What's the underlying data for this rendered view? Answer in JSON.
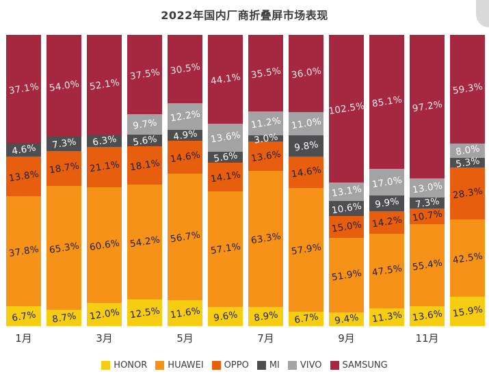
{
  "title": "2022年国内厂商折叠屏市场表现",
  "chart_data": {
    "type": "bar",
    "stacked": true,
    "normalized_100_percent": true,
    "grid": false,
    "legend_position": "bottom",
    "value_suffix": "%",
    "x_tick_labels": [
      "1月",
      "3月",
      "5月",
      "7月",
      "9月",
      "11月"
    ],
    "num_bars": 12,
    "series": [
      {
        "name": "HONOR",
        "color": "#F6CD13",
        "label_color": "#1f1f1f",
        "values": [
          6.7,
          8.7,
          12.0,
          12.5,
          11.6,
          9.6,
          8.9,
          6.7,
          9.4,
          11.3,
          13.6,
          15.9
        ]
      },
      {
        "name": "HUAWEI",
        "color": "#F59217",
        "label_color": "#1f1f1f",
        "values": [
          37.8,
          65.3,
          60.6,
          54.2,
          56.7,
          57.1,
          63.3,
          57.9,
          51.9,
          47.5,
          55.4,
          42.5
        ]
      },
      {
        "name": "OPPO",
        "color": "#E85E0F",
        "label_color": "#1f1f1f",
        "values": [
          13.8,
          18.7,
          21.1,
          18.1,
          14.6,
          14.1,
          13.6,
          14.6,
          15.0,
          14.2,
          10.7,
          28.3
        ]
      },
      {
        "name": "MI",
        "color": "#4E4E50",
        "label_color": "#ffffff",
        "values": [
          4.6,
          7.3,
          6.3,
          5.6,
          4.9,
          5.6,
          3.0,
          9.8,
          10.6,
          9.9,
          7.3,
          5.3
        ]
      },
      {
        "name": "VIVO",
        "color": "#A4A3A4",
        "label_color": "#ffffff",
        "values": [
          null,
          null,
          null,
          9.7,
          12.2,
          13.6,
          11.2,
          11.0,
          13.1,
          17.0,
          13.0,
          8.0
        ]
      },
      {
        "name": "SAMSUNG",
        "color": "#A52840",
        "label_color": "#F8E9ED",
        "values": [
          37.1,
          54.0,
          52.1,
          37.5,
          30.5,
          44.1,
          35.5,
          36.0,
          102.5,
          85.1,
          97.2,
          59.3
        ]
      }
    ]
  },
  "colors": {
    "background": "#ffffff",
    "title_text": "#3c3c3c",
    "axis_text": "#333333",
    "legend_text": "#3d3d3d",
    "corner_widget": "#d9d9d9"
  }
}
